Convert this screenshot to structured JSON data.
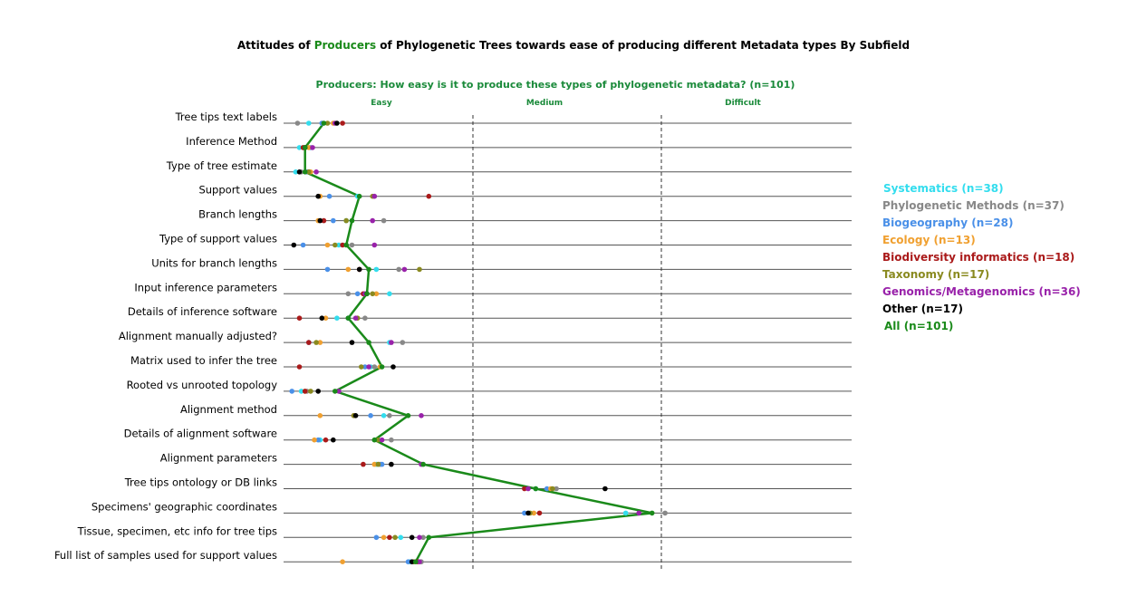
{
  "chart_data": {
    "type": "scatter",
    "title_parts": [
      "Attitudes of ",
      "Producers",
      " of Phylogenetic Trees towards ease of producing different Metadata types By Subfield"
    ],
    "subtitle": "Producers: How easy is it to produce these types of phylogenetic metadata? (n=101)",
    "columns": [
      "Easy",
      "Medium",
      "Difficult"
    ],
    "xlim": [
      1,
      3
    ],
    "colors": {
      "title_accent": "#1a8a1a",
      "subtitle": "#1a8a3a",
      "gridline": "#555555",
      "divider": "#333333"
    },
    "categories": [
      "Tree tips text labels",
      "Inference Method",
      "Type of tree estimate",
      "Support values",
      "Branch lengths",
      "Type of support values",
      "Units for branch lengths",
      "Input inference parameters",
      "Details of inference software",
      "Alignment manually adjusted?",
      "Matrix used to infer the tree",
      "Rooted vs unrooted topology",
      "Alignment method",
      "Details of alignment software",
      "Alignment parameters",
      "Tree tips ontology or DB links",
      "Specimens' geographic coordinates",
      "Tissue, specimen, etc info for tree tips",
      "Full list of samples used for support values"
    ],
    "series": [
      {
        "name": "Systematics",
        "legend": "Systematics (n=38)",
        "color": "#33ddee",
        "values": [
          1.12,
          1.07,
          1.05,
          1.38,
          1.32,
          1.28,
          1.48,
          1.55,
          1.27,
          1.55,
          1.45,
          1.08,
          1.52,
          1.18,
          1.48,
          2.33,
          2.81,
          1.61,
          1.66
        ]
      },
      {
        "name": "Phylogenetic Methods",
        "legend": "Phylogenetic Methods (n=37)",
        "color": "#888888",
        "values": [
          1.06,
          1.09,
          1.08,
          1.47,
          1.52,
          1.35,
          1.6,
          1.33,
          1.42,
          1.62,
          1.47,
          1.11,
          1.55,
          1.56,
          1.5,
          2.44,
          3.02,
          1.73,
          1.72
        ]
      },
      {
        "name": "Biogeography",
        "legend": "Biogeography (n=28)",
        "color": "#4a90e8",
        "values": [
          1.19,
          1.13,
          1.11,
          1.23,
          1.25,
          1.09,
          1.22,
          1.38,
          1.33,
          1.12,
          1.42,
          1.03,
          1.45,
          1.17,
          1.51,
          2.39,
          2.27,
          1.48,
          1.65
        ]
      },
      {
        "name": "Ecology",
        "legend": "Ecology (n=13)",
        "color": "#f0a030",
        "values": [
          1.25,
          1.12,
          1.13,
          1.18,
          1.17,
          1.22,
          1.33,
          1.48,
          1.21,
          1.18,
          1.5,
          1.1,
          1.18,
          1.15,
          1.47,
          2.41,
          2.32,
          1.52,
          1.3
        ]
      },
      {
        "name": "Biodiversity informatics",
        "legend": "Biodiversity informatics (n=18)",
        "color": "#aa1a1a",
        "values": [
          1.3,
          1.09,
          1.12,
          1.76,
          1.2,
          1.3,
          1.39,
          1.41,
          1.07,
          1.12,
          1.07,
          1.1,
          1.36,
          1.21,
          1.41,
          2.27,
          2.35,
          1.55,
          1.7
        ]
      },
      {
        "name": "Taxonomy",
        "legend": "Taxonomy (n=17)",
        "color": "#8a8a20",
        "values": [
          1.22,
          1.1,
          1.12,
          1.46,
          1.32,
          1.26,
          1.71,
          1.46,
          1.38,
          1.16,
          1.4,
          1.13,
          1.36,
          1.49,
          1.49,
          2.42,
          2.3,
          1.58,
          1.68
        ]
      },
      {
        "name": "Genomics/Metagenomics",
        "legend": "Genomics/Metagenomics (n=36)",
        "color": "#9922aa",
        "values": [
          1.26,
          1.14,
          1.16,
          1.47,
          1.46,
          1.47,
          1.63,
          1.42,
          1.37,
          1.56,
          1.44,
          1.28,
          1.72,
          1.51,
          1.72,
          2.29,
          2.88,
          1.71,
          1.71
        ]
      },
      {
        "name": "Other",
        "legend": "Other (n=17)",
        "color": "#000000",
        "values": [
          1.27,
          1.1,
          1.07,
          1.17,
          1.18,
          1.04,
          1.39,
          1.43,
          1.19,
          1.35,
          1.57,
          1.17,
          1.37,
          1.25,
          1.56,
          2.7,
          2.29,
          1.67,
          1.67
        ]
      },
      {
        "name": "All",
        "legend": "All (n=101)",
        "color": "#1a8a1a",
        "line": true,
        "values": [
          1.2,
          1.1,
          1.1,
          1.39,
          1.35,
          1.32,
          1.44,
          1.43,
          1.33,
          1.44,
          1.51,
          1.26,
          1.65,
          1.47,
          1.73,
          2.33,
          2.95,
          1.76,
          1.69
        ]
      }
    ]
  }
}
